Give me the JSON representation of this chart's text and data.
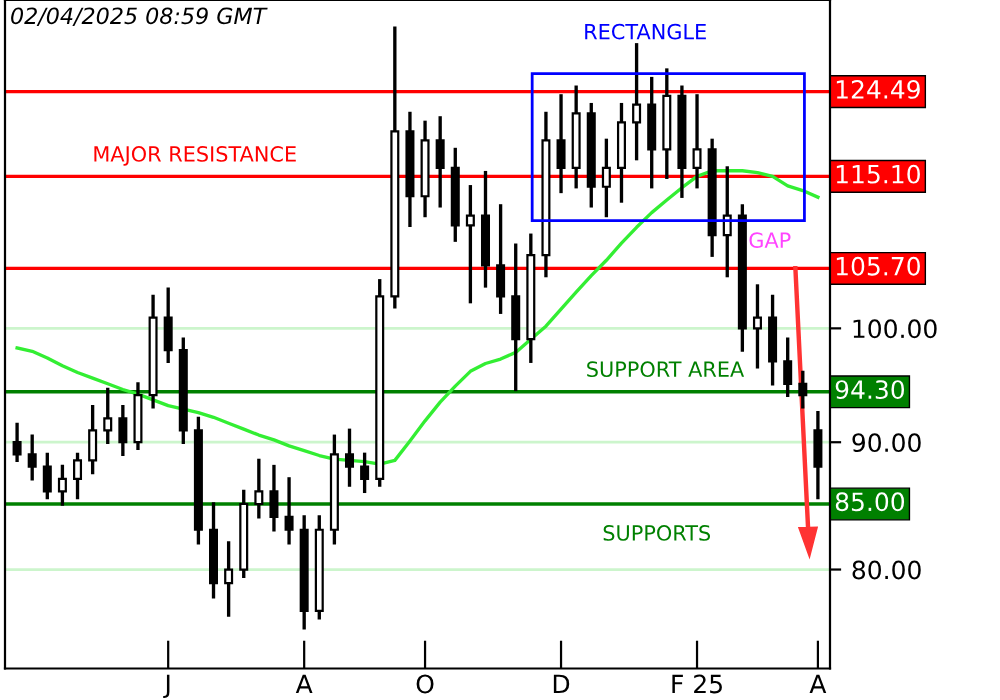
{
  "chart_data": {
    "type": "candlestick",
    "categories": [
      null,
      null,
      null,
      null,
      null,
      null,
      null,
      null,
      null,
      null,
      "J",
      null,
      null,
      null,
      null,
      null,
      null,
      null,
      null,
      "A",
      null,
      null,
      null,
      null,
      null,
      null,
      null,
      "O",
      null,
      null,
      null,
      null,
      null,
      null,
      null,
      null,
      "D",
      null,
      null,
      null,
      null,
      null,
      null,
      null,
      null,
      "F 25",
      null,
      null,
      null,
      null,
      null,
      null,
      null,
      "A"
    ],
    "ohlc": [
      [
        90,
        91.5,
        88.5,
        89
      ],
      [
        89,
        90.5,
        87,
        88
      ],
      [
        88,
        89,
        85.5,
        86
      ],
      [
        86,
        88,
        85,
        87
      ],
      [
        87,
        89,
        85.5,
        88.5
      ],
      [
        88.5,
        93,
        87.5,
        91
      ],
      [
        91,
        94.5,
        90,
        92
      ],
      [
        92,
        93,
        89,
        90
      ],
      [
        90,
        95,
        89.5,
        94
      ],
      [
        94,
        103,
        93,
        101
      ],
      [
        101,
        103.7,
        97,
        98
      ],
      [
        98,
        99,
        90,
        91
      ],
      [
        91,
        92,
        82,
        83
      ],
      [
        83,
        85,
        78,
        79
      ],
      [
        79,
        82,
        76.7,
        80
      ],
      [
        80,
        86,
        79.5,
        85
      ],
      [
        85,
        88.5,
        84,
        86
      ],
      [
        86,
        88,
        83,
        84
      ],
      [
        84,
        87,
        82,
        83
      ],
      [
        83,
        84,
        75.8,
        77
      ],
      [
        77,
        84,
        76.5,
        83
      ],
      [
        83,
        90.5,
        82,
        89
      ],
      [
        89,
        91,
        86.5,
        88
      ],
      [
        88,
        89,
        86,
        87
      ],
      [
        87,
        104.5,
        86.5,
        103
      ],
      [
        103,
        132,
        102,
        120
      ],
      [
        120,
        122,
        110,
        113
      ],
      [
        113,
        121,
        111,
        119
      ],
      [
        119,
        121.5,
        112,
        116
      ],
      [
        116,
        118,
        108.5,
        110
      ],
      [
        110,
        114,
        102.5,
        111
      ],
      [
        111,
        115.5,
        104,
        106
      ],
      [
        106,
        112,
        101.5,
        103
      ],
      [
        103,
        108,
        94.5,
        99
      ],
      [
        99,
        109,
        97,
        107
      ],
      [
        107,
        122,
        105,
        119
      ],
      [
        119,
        124,
        113.5,
        116
      ],
      [
        116,
        125,
        114,
        122
      ],
      [
        122,
        123,
        112,
        114
      ],
      [
        114,
        119,
        111,
        116
      ],
      [
        116,
        123,
        112.5,
        121
      ],
      [
        121,
        130,
        117,
        123
      ],
      [
        123,
        126,
        114,
        118
      ],
      [
        118,
        127,
        115,
        124
      ],
      [
        124,
        125,
        113,
        116
      ],
      [
        116,
        124,
        114,
        118
      ],
      [
        118,
        119,
        107,
        109
      ],
      [
        109,
        116,
        105,
        111
      ],
      [
        111,
        112,
        98,
        100
      ],
      [
        100,
        104,
        96.5,
        101
      ],
      [
        101,
        103,
        95,
        97
      ],
      [
        97,
        99,
        94,
        95
      ],
      [
        95,
        96,
        93,
        94
      ],
      [
        91,
        92.5,
        85.5,
        88
      ]
    ],
    "series": [
      {
        "type": "line",
        "color": "#33ee33",
        "values": [
          98.2,
          97.9,
          97.3,
          96.6,
          96.0,
          95.5,
          95.0,
          94.5,
          94.1,
          93.6,
          93.1,
          92.8,
          92.5,
          92.1,
          91.6,
          91.1,
          90.6,
          90.2,
          89.7,
          89.3,
          88.9,
          88.6,
          88.5,
          88.4,
          88.2,
          88.5,
          90.1,
          91.8,
          93.4,
          94.8,
          96.1,
          96.8,
          97.2,
          97.8,
          99.0,
          100.2,
          101.8,
          103.4,
          105.0,
          106.5,
          108.2,
          109.8,
          111.3,
          112.6,
          113.9,
          115.1,
          115.7,
          115.7,
          115.7,
          115.5,
          115.1,
          114.1,
          113.6,
          112.9
        ]
      }
    ],
    "log": true,
    "ylim": [
      73,
      135.5
    ],
    "yticks": [
      {
        "value": 80,
        "label": "80.00"
      },
      {
        "value": 90,
        "label": "90.00"
      },
      {
        "value": 100,
        "label": "100.00"
      }
    ],
    "grid": "y",
    "legend": false,
    "ref_lines": [
      {
        "axis": "y",
        "value": 124.49,
        "label": "124.49",
        "color": "#ff0000"
      },
      {
        "axis": "y",
        "value": 115.1,
        "label": "115.10",
        "color": "#ff0000"
      },
      {
        "axis": "y",
        "value": 105.7,
        "label": "105.70",
        "color": "#ff0000"
      },
      {
        "axis": "y",
        "value": 94.3,
        "label": "94.30",
        "color": "#008000"
      },
      {
        "axis": "y",
        "value": 85.0,
        "label": "85.00",
        "color": "#008000"
      }
    ],
    "annotations": [
      "02/04/2025 08:59 GMT",
      "MAJOR RESISTANCE",
      "RECTANGLE",
      "GAP",
      "SUPPORT AREA",
      "SUPPORTS"
    ]
  }
}
